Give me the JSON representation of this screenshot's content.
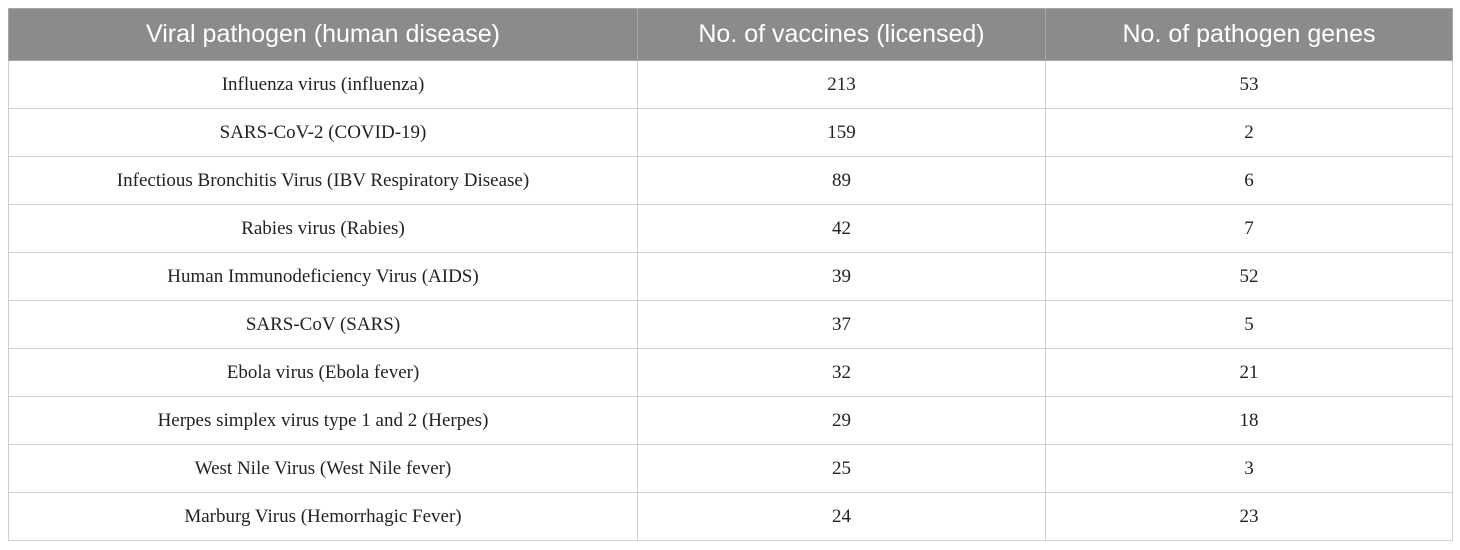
{
  "table": {
    "headers": [
      "Viral pathogen (human disease)",
      "No. of vaccines (licensed)",
      "No. of pathogen genes"
    ],
    "rows": [
      [
        "Influenza virus (influenza)",
        "213",
        "53"
      ],
      [
        "SARS-CoV-2 (COVID-19)",
        "159",
        "2"
      ],
      [
        "Infectious Bronchitis Virus (IBV Respiratory Disease)",
        "89",
        "6"
      ],
      [
        "Rabies virus (Rabies)",
        "42",
        "7"
      ],
      [
        "Human Immunodeficiency Virus (AIDS)",
        "39",
        "52"
      ],
      [
        "SARS-CoV (SARS)",
        "37",
        "5"
      ],
      [
        "Ebola virus (Ebola fever)",
        "32",
        "21"
      ],
      [
        "Herpes simplex virus type 1 and 2 (Herpes)",
        "29",
        "18"
      ],
      [
        "West Nile Virus (West Nile fever)",
        "25",
        "3"
      ],
      [
        "Marburg Virus (Hemorrhagic Fever)",
        "24",
        "23"
      ]
    ]
  }
}
